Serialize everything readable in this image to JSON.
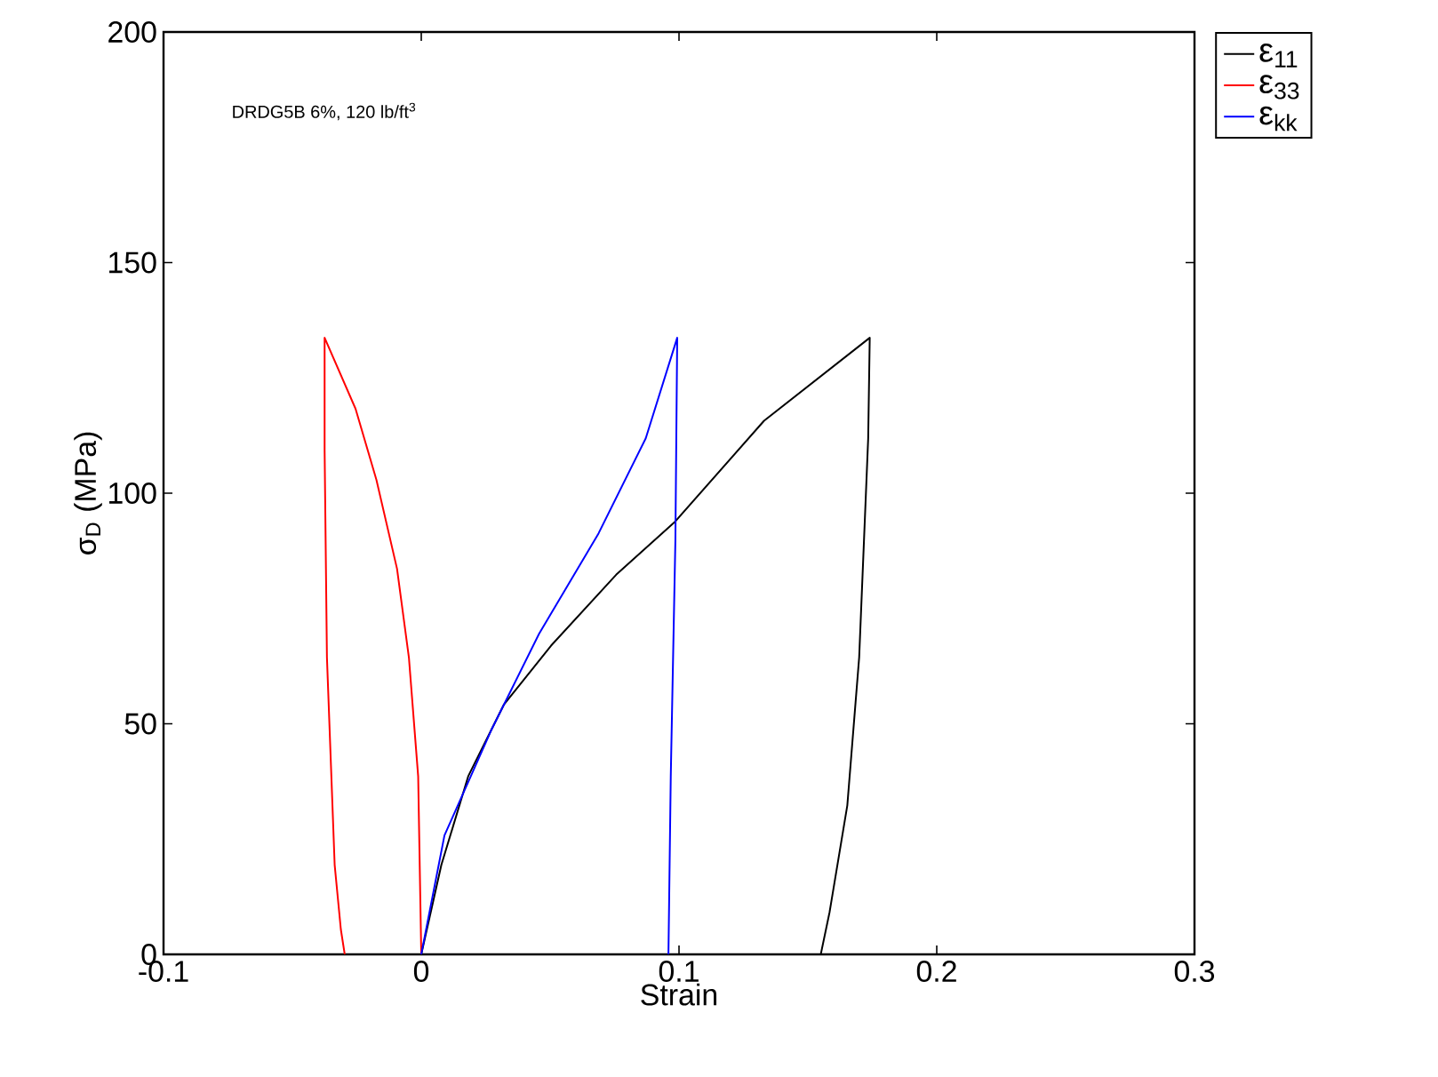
{
  "chart_data": {
    "type": "line",
    "xlabel": "Strain",
    "ylabel": "σ$_{D}$ (MPa)",
    "annotations": [
      "DRDG5B 6%, 120 lb/ft$^{3}$"
    ],
    "xlim": [
      -0.1,
      0.3
    ],
    "xticks": [
      -0.1,
      0,
      0.1,
      0.2,
      0.3
    ],
    "ylim": [
      0,
      200
    ],
    "yticks": [
      0,
      50,
      100,
      150,
      200
    ],
    "legend": "top right",
    "series": [
      {
        "name": "ε$_{11}$",
        "color": "#000000",
        "x": [
          0,
          0.0078,
          0.0182,
          0.032,
          0.0503,
          0.0756,
          0.0986,
          0.133,
          0.174,
          0.1734,
          0.1699,
          0.1653,
          0.1584,
          0.155
        ],
        "values": [
          0,
          19.4,
          38.6,
          54.1,
          66.9,
          82.3,
          93.9,
          115.7,
          133.7,
          111.9,
          64.4,
          32.3,
          9.1,
          0
        ]
      },
      {
        "name": "ε$_{33}$",
        "color": "#ff0000",
        "x": [
          0,
          -0.0012,
          -0.0048,
          -0.0094,
          -0.0174,
          -0.0255,
          -0.0375,
          -0.0375,
          -0.0366,
          -0.0336,
          -0.0312,
          -0.0297
        ],
        "values": [
          0,
          38.6,
          64.4,
          83.6,
          102.9,
          118.3,
          133.7,
          109.3,
          64.4,
          19.4,
          5.4,
          0
        ]
      },
      {
        "name": "ε$_{kk}$",
        "color": "#0000ff",
        "x": [
          0,
          0.009,
          0.0274,
          0.0457,
          0.0688,
          0.0871,
          0.0993,
          0.0986,
          0.0968,
          0.0959
        ],
        "values": [
          0,
          25.8,
          48.9,
          69.5,
          91.3,
          111.9,
          133.7,
          90,
          38.6,
          0
        ]
      }
    ]
  }
}
